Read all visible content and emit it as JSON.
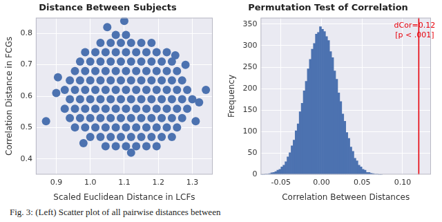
{
  "chart_data": [
    {
      "type": "scatter",
      "title": "Distance Between Subjects",
      "x_label": "Scaled Euclidean Distance in LCFs",
      "y_label": "Correlation Distance in FCGs",
      "color": "#4c72b0",
      "grid": true,
      "xlim": [
        0.84,
        1.36
      ],
      "xticks": [
        0.9,
        {
          "value": 1,
          "label": "1.0"
        },
        1.1,
        1.2,
        1.3
      ],
      "ylim": [
        0.35,
        0.85
      ],
      "yticks": [
        0.4,
        0.5,
        0.6,
        0.7,
        0.8
      ],
      "x": [
        1.045,
        1.075,
        1.105,
        1.135,
        1.165,
        1.195,
        1.0,
        1.03,
        1.06,
        1.09,
        1.12,
        1.15,
        1.18,
        1.21,
        1.24,
        0.955,
        0.985,
        1.015,
        1.045,
        1.075,
        1.105,
        1.135,
        1.165,
        1.195,
        1.225,
        1.255,
        0.94,
        0.97,
        1.0,
        1.03,
        1.06,
        1.09,
        1.12,
        1.15,
        1.18,
        1.21,
        1.24,
        1.27,
        0.925,
        0.955,
        0.985,
        1.015,
        1.045,
        1.075,
        1.105,
        1.135,
        1.165,
        1.195,
        1.225,
        1.255,
        1.285,
        0.94,
        0.97,
        1.0,
        1.03,
        1.06,
        1.09,
        1.12,
        1.15,
        1.18,
        1.21,
        1.24,
        1.27,
        1.3,
        0.925,
        0.955,
        0.985,
        1.015,
        1.045,
        1.075,
        1.105,
        1.135,
        1.165,
        1.195,
        1.225,
        1.255,
        1.285,
        0.94,
        0.97,
        1.0,
        1.03,
        1.06,
        1.09,
        1.12,
        1.15,
        1.18,
        1.21,
        1.24,
        1.27,
        0.955,
        0.985,
        1.015,
        1.045,
        1.075,
        1.105,
        1.135,
        1.165,
        1.195,
        1.225,
        1.255,
        0.97,
        1.0,
        1.03,
        1.06,
        1.09,
        1.12,
        1.15,
        1.18,
        1.21,
        1.24,
        0.985,
        1.015,
        1.045,
        1.075,
        1.105,
        1.135,
        1.165,
        1.195,
        1.225,
        1.03,
        1.06,
        1.09,
        1.12,
        1.15,
        1.18,
        1.075,
        1.105,
        0.87,
        0.9,
        0.905,
        1.32,
        1.34,
        1.31,
        1.05,
        1.1,
        1.12,
        0.98,
        1.25,
        1.28
      ],
      "values": [
        0.44,
        0.44,
        0.44,
        0.44,
        0.44,
        0.44,
        0.47,
        0.47,
        0.47,
        0.47,
        0.47,
        0.47,
        0.47,
        0.47,
        0.47,
        0.5,
        0.5,
        0.5,
        0.5,
        0.5,
        0.5,
        0.5,
        0.5,
        0.5,
        0.5,
        0.5,
        0.53,
        0.53,
        0.53,
        0.53,
        0.53,
        0.53,
        0.53,
        0.53,
        0.53,
        0.53,
        0.53,
        0.53,
        0.56,
        0.56,
        0.56,
        0.56,
        0.56,
        0.56,
        0.56,
        0.56,
        0.56,
        0.56,
        0.56,
        0.56,
        0.56,
        0.59,
        0.59,
        0.59,
        0.59,
        0.59,
        0.59,
        0.59,
        0.59,
        0.59,
        0.59,
        0.59,
        0.59,
        0.59,
        0.62,
        0.62,
        0.62,
        0.62,
        0.62,
        0.62,
        0.62,
        0.62,
        0.62,
        0.62,
        0.62,
        0.62,
        0.62,
        0.65,
        0.65,
        0.65,
        0.65,
        0.65,
        0.65,
        0.65,
        0.65,
        0.65,
        0.65,
        0.65,
        0.65,
        0.68,
        0.68,
        0.68,
        0.68,
        0.68,
        0.68,
        0.68,
        0.68,
        0.68,
        0.68,
        0.68,
        0.71,
        0.71,
        0.71,
        0.71,
        0.71,
        0.71,
        0.71,
        0.71,
        0.71,
        0.71,
        0.74,
        0.74,
        0.74,
        0.74,
        0.74,
        0.74,
        0.74,
        0.74,
        0.74,
        0.77,
        0.77,
        0.77,
        0.77,
        0.77,
        0.77,
        0.795,
        0.795,
        0.52,
        0.61,
        0.66,
        0.58,
        0.62,
        0.52,
        0.82,
        0.84,
        0.42,
        0.45,
        0.73,
        0.7
      ]
    },
    {
      "type": "histogram",
      "title": "Permutation Test of Correlation",
      "x_label": "Correlation Between Distances",
      "y_label": "Frequency",
      "color": "#4c72b0",
      "grid": true,
      "xlim": [
        -0.075,
        0.135
      ],
      "xticks": [
        -0.05,
        {
          "value": 0,
          "label": "0.00"
        },
        0.05,
        {
          "value": 0.1,
          "label": "0.10"
        }
      ],
      "ylim": [
        0,
        365
      ],
      "yticks": [
        0,
        50,
        100,
        150,
        200,
        250,
        300,
        350
      ],
      "bins": [
        -0.075,
        -0.0725,
        -0.07,
        -0.0675,
        -0.065,
        -0.0625,
        -0.06,
        -0.0575,
        -0.055,
        -0.0525,
        -0.05,
        -0.0475,
        -0.045,
        -0.0425,
        -0.04,
        -0.0375,
        -0.035,
        -0.0325,
        -0.03,
        -0.0275,
        -0.025,
        -0.0225,
        -0.02,
        -0.0175,
        -0.015,
        -0.0125,
        -0.01,
        -0.0075,
        -0.005,
        -0.0025,
        0,
        0.0025,
        0.005,
        0.0075,
        0.01,
        0.0125,
        0.015,
        0.0175,
        0.02,
        0.0225,
        0.025,
        0.0275,
        0.03,
        0.0325,
        0.035,
        0.0375,
        0.04,
        0.0425,
        0.045,
        0.0475,
        0.05,
        0.0525,
        0.055,
        0.0575,
        0.06,
        0.0625,
        0.065,
        0.0675,
        0.07,
        0.0725,
        0.075
      ],
      "values": [
        0,
        0,
        1,
        1,
        2,
        4,
        5,
        7,
        10,
        12,
        18,
        22,
        30,
        41,
        51,
        67,
        80,
        102,
        118,
        146,
        166,
        195,
        217,
        246,
        268,
        292,
        305,
        327,
        331,
        344,
        338,
        333,
        321,
        312,
        286,
        272,
        241,
        222,
        190,
        170,
        141,
        124,
        98,
        84,
        64,
        54,
        38,
        32,
        22,
        18,
        12,
        10,
        5,
        5,
        3,
        2,
        1,
        1,
        0,
        0
      ],
      "annotations": [
        {
          "x": 0.12,
          "text": [
            "dCor=0.12",
            "[p < .001]"
          ],
          "color": "#e8000b"
        }
      ]
    }
  ],
  "caption": "Fig. 3: (Left) Scatter plot of all pairwise distances between"
}
